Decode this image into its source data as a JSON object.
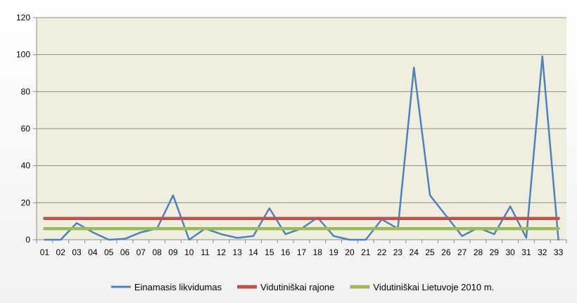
{
  "chart_data": {
    "type": "line",
    "title": "",
    "xlabel": "",
    "ylabel": "",
    "categories": [
      "01",
      "02",
      "03",
      "04",
      "05",
      "06",
      "07",
      "08",
      "09",
      "10",
      "11",
      "12",
      "13",
      "14",
      "15",
      "16",
      "17",
      "18",
      "19",
      "20",
      "21",
      "22",
      "23",
      "24",
      "25",
      "26",
      "27",
      "28",
      "29",
      "30",
      "31",
      "32",
      "33"
    ],
    "ylim": [
      0,
      120
    ],
    "yticks": [
      0,
      20,
      40,
      60,
      80,
      100,
      120
    ],
    "grid": true,
    "legend_position": "bottom",
    "plot_background": "#f0efdf",
    "series": [
      {
        "name": "Einamasis likvidumas",
        "color": "#4f81bd",
        "values": [
          0,
          0,
          9,
          4,
          0,
          0.5,
          4,
          6,
          24,
          0,
          6,
          3,
          1,
          2,
          17,
          3,
          6,
          12,
          2,
          0,
          0,
          11,
          6,
          93,
          24,
          13,
          2,
          6.5,
          3,
          18,
          1,
          99,
          0
        ]
      },
      {
        "name": "Vidutiniškai rajone",
        "color": "#c0504d",
        "values": [
          11.5,
          11.5,
          11.5,
          11.5,
          11.5,
          11.5,
          11.5,
          11.5,
          11.5,
          11.5,
          11.5,
          11.5,
          11.5,
          11.5,
          11.5,
          11.5,
          11.5,
          11.5,
          11.5,
          11.5,
          11.5,
          11.5,
          11.5,
          11.5,
          11.5,
          11.5,
          11.5,
          11.5,
          11.5,
          11.5,
          11.5,
          11.5,
          11.5
        ]
      },
      {
        "name": "Vidutiniškai Lietuvoje 2010 m.",
        "color": "#9bbb59",
        "values": [
          6,
          6,
          6,
          6,
          6,
          6,
          6,
          6,
          6,
          6,
          6,
          6,
          6,
          6,
          6,
          6,
          6,
          6,
          6,
          6,
          6,
          6,
          6,
          6,
          6,
          6,
          6,
          6,
          6,
          6,
          6,
          6,
          6
        ]
      }
    ]
  }
}
